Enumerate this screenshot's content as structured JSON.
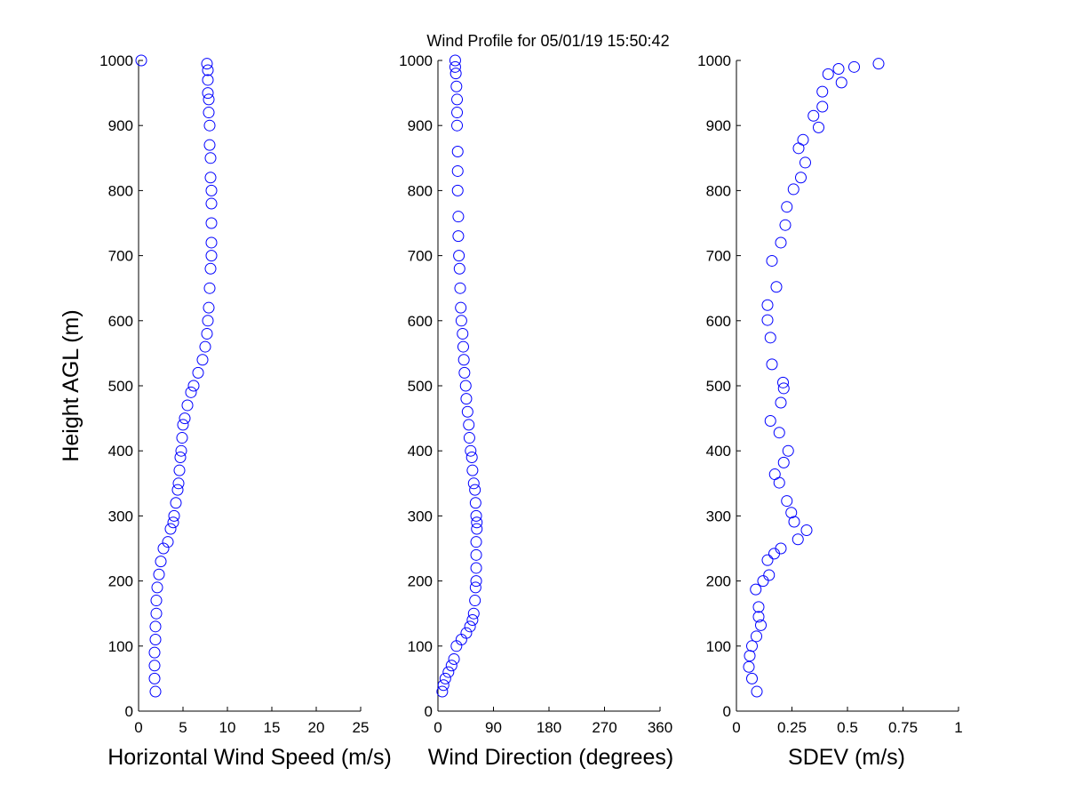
{
  "title": "Wind Profile for  05/01/19 15:50:42",
  "marker_color": "#0000ff",
  "chart_data": [
    {
      "type": "scatter",
      "xlabel": "Horizontal Wind Speed (m/s)",
      "ylabel": "Height AGL (m)",
      "xlim": [
        0,
        25
      ],
      "ylim": [
        0,
        1000
      ],
      "xticks": [
        0,
        5,
        10,
        15,
        20,
        25
      ],
      "yticks": [
        0,
        100,
        200,
        300,
        400,
        500,
        600,
        700,
        800,
        900,
        1000
      ],
      "grid": false,
      "x": [
        1.9,
        1.8,
        1.8,
        1.8,
        1.9,
        1.9,
        2.0,
        2.0,
        2.1,
        2.3,
        2.5,
        2.8,
        3.3,
        3.6,
        3.9,
        4.0,
        4.2,
        4.4,
        4.5,
        4.6,
        4.7,
        4.8,
        4.9,
        5.0,
        5.2,
        5.5,
        5.9,
        6.2,
        6.7,
        7.2,
        7.5,
        7.7,
        7.8,
        7.9,
        8.0,
        8.1,
        8.2,
        8.2,
        8.2,
        8.2,
        8.2,
        8.1,
        8.1,
        8.0,
        8.0,
        7.9,
        7.9,
        7.8,
        7.8,
        7.8,
        7.7,
        0.3
      ],
      "y": [
        30,
        50,
        70,
        90,
        110,
        130,
        150,
        170,
        190,
        210,
        230,
        250,
        260,
        280,
        290,
        300,
        320,
        340,
        350,
        370,
        390,
        400,
        420,
        440,
        450,
        470,
        490,
        500,
        520,
        540,
        560,
        580,
        600,
        620,
        650,
        680,
        700,
        720,
        750,
        780,
        800,
        820,
        850,
        870,
        900,
        920,
        940,
        950,
        970,
        985,
        995,
        1000
      ]
    },
    {
      "type": "scatter",
      "xlabel": "Wind Direction (degrees)",
      "xlim": [
        0,
        360
      ],
      "ylim": [
        0,
        1000
      ],
      "xticks": [
        0,
        90,
        180,
        270,
        360
      ],
      "yticks": [
        0,
        100,
        200,
        300,
        400,
        500,
        600,
        700,
        800,
        900,
        1000
      ],
      "grid": false,
      "x": [
        7,
        9,
        12,
        17,
        22,
        26,
        30,
        38,
        46,
        52,
        56,
        58,
        60,
        61,
        62,
        62,
        62,
        62,
        63,
        63,
        62,
        61,
        60,
        58,
        56,
        55,
        53,
        51,
        50,
        48,
        46,
        45,
        43,
        42,
        41,
        40,
        38,
        37,
        36,
        35,
        34,
        33,
        33,
        32,
        32,
        32,
        31,
        31,
        31,
        30,
        29,
        28,
        28
      ],
      "y": [
        30,
        40,
        50,
        60,
        70,
        80,
        100,
        110,
        120,
        130,
        140,
        150,
        170,
        190,
        200,
        220,
        240,
        260,
        280,
        290,
        300,
        320,
        340,
        350,
        370,
        390,
        400,
        420,
        440,
        460,
        480,
        500,
        520,
        540,
        560,
        580,
        600,
        620,
        650,
        680,
        700,
        730,
        760,
        800,
        830,
        860,
        900,
        920,
        940,
        960,
        980,
        990,
        1000
      ]
    },
    {
      "type": "scatter",
      "xlabel": "SDEV  (m/s)",
      "xlim": [
        0,
        1
      ],
      "ylim": [
        0,
        1000
      ],
      "xticks": [
        0,
        0.25,
        0.5,
        0.75,
        1
      ],
      "xticklabels": [
        "0",
        "0.25",
        "0.5",
        "0.75",
        "1"
      ],
      "yticks": [
        0,
        100,
        200,
        300,
        400,
        500,
        600,
        700,
        800,
        900,
        1000
      ],
      "grid": false,
      "x": [
        0.092,
        0.07,
        0.056,
        0.06,
        0.07,
        0.09,
        0.11,
        0.1,
        0.1,
        0.087,
        0.12,
        0.147,
        0.14,
        0.17,
        0.2,
        0.277,
        0.316,
        0.26,
        0.247,
        0.227,
        0.193,
        0.173,
        0.213,
        0.233,
        0.193,
        0.153,
        0.2,
        0.213,
        0.21,
        0.16,
        0.153,
        0.14,
        0.14,
        0.18,
        0.16,
        0.2,
        0.22,
        0.227,
        0.257,
        0.29,
        0.31,
        0.28,
        0.3,
        0.37,
        0.347,
        0.387,
        0.387,
        0.473,
        0.413,
        0.46,
        0.53,
        0.64
      ],
      "y": [
        30,
        50,
        68,
        85,
        100,
        115,
        132,
        145,
        160,
        187,
        200,
        209,
        232,
        242,
        250,
        264,
        278,
        291,
        305,
        323,
        351,
        364,
        382,
        400,
        428,
        446,
        474,
        496,
        505,
        533,
        574,
        601,
        624,
        652,
        692,
        720,
        747,
        775,
        802,
        820,
        843,
        865,
        878,
        897,
        915,
        929,
        952,
        966,
        979,
        987,
        990,
        995
      ]
    }
  ]
}
